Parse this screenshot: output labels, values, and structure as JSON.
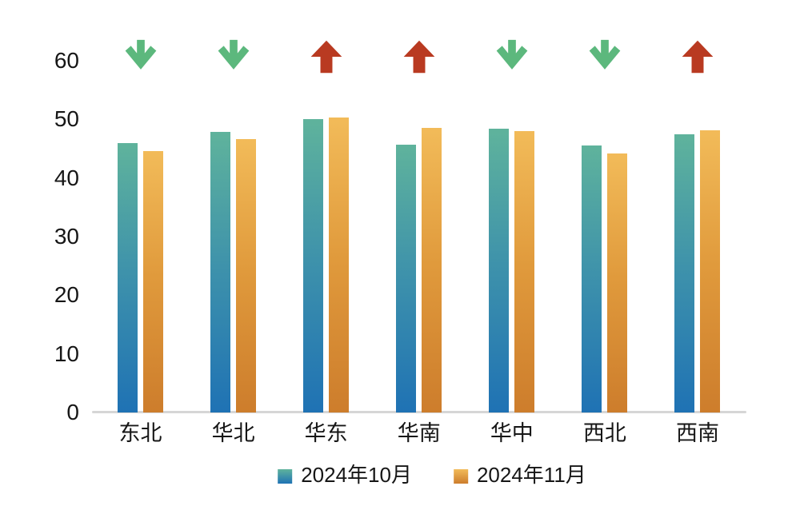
{
  "chart_data": {
    "type": "bar",
    "title": "",
    "xlabel": "",
    "ylabel": "",
    "categories": [
      "东北",
      "华北",
      "华东",
      "华南",
      "华中",
      "西北",
      "西南"
    ],
    "series": [
      {
        "name": "2024年10月",
        "values": [
          45.9,
          47.9,
          50.0,
          45.7,
          48.4,
          45.5,
          47.5
        ],
        "color_top": "#5fb39c",
        "color_mid": "#3e92ab",
        "color_bottom": "#1f72b4"
      },
      {
        "name": "2024年11月",
        "values": [
          44.6,
          46.7,
          50.3,
          48.6,
          48.0,
          44.2,
          48.1
        ],
        "color_top": "#f2bb59",
        "color_mid": "#e09a3c",
        "color_bottom": "#cd7d2c"
      }
    ],
    "trend_arrows": [
      "down",
      "down",
      "up",
      "up",
      "down",
      "down",
      "up"
    ],
    "arrow_colors": {
      "up": "#b93a21",
      "down": "#5cb87d"
    },
    "ylim": [
      0,
      60
    ],
    "yticks": [
      0,
      10,
      20,
      30,
      40,
      50,
      60
    ],
    "grid": false,
    "legend_position": "bottom"
  },
  "colors": {
    "background": "#ffffff",
    "axis_line": "#d6d6d6",
    "text": "#161616"
  }
}
